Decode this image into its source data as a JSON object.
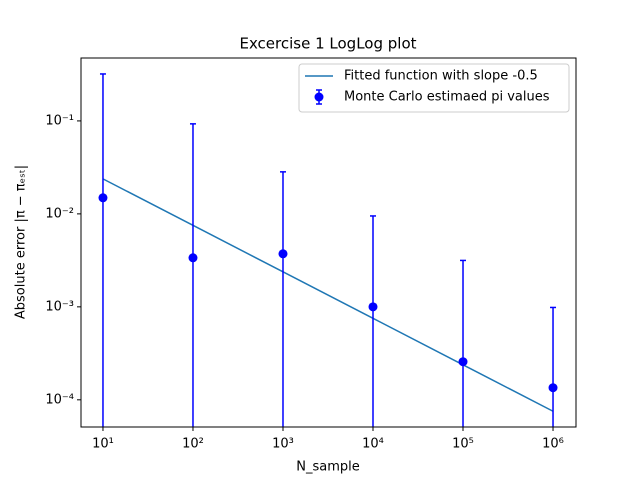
{
  "chart_data": {
    "type": "errorbar",
    "title": "Excercise 1 LogLog plot",
    "xlabel": "N_sample",
    "ylabel": "Absolute error |π − πₑₛₜ|",
    "x": [
      10,
      100,
      1000,
      10000,
      100000,
      1000000
    ],
    "series": [
      {
        "name": "Fitted function with slope -0.5",
        "type": "line",
        "color": "#1f77b4",
        "values": [
          0.0238,
          0.00753,
          0.00238,
          0.000753,
          0.000238,
          7.53e-05
        ]
      },
      {
        "name": "Monte Carlo estimaed pi values",
        "type": "errorbar",
        "color": "#0000ff",
        "values": [
          0.0149,
          0.00337,
          0.00372,
          0.001,
          0.000257,
          0.000135
        ],
        "errors": [
          0.305,
          0.0896,
          0.0246,
          0.0085,
          0.0029,
          0.00085
        ]
      }
    ],
    "xscale": "log",
    "yscale": "log",
    "xlim": [
      5.7,
      1800000
    ],
    "ylim": [
      5.1e-05,
      0.475
    ],
    "xticks": [
      {
        "value": 10,
        "label": "10¹"
      },
      {
        "value": 100,
        "label": "10²"
      },
      {
        "value": 1000,
        "label": "10³"
      },
      {
        "value": 10000,
        "label": "10⁴"
      },
      {
        "value": 100000,
        "label": "10⁵"
      },
      {
        "value": 1000000,
        "label": "10⁶"
      }
    ],
    "yticks": [
      {
        "value": 0.0001,
        "label": "10⁻⁴"
      },
      {
        "value": 0.001,
        "label": "10⁻³"
      },
      {
        "value": 0.01,
        "label": "10⁻²"
      },
      {
        "value": 0.1,
        "label": "10⁻¹"
      }
    ],
    "legend": "upper right"
  }
}
